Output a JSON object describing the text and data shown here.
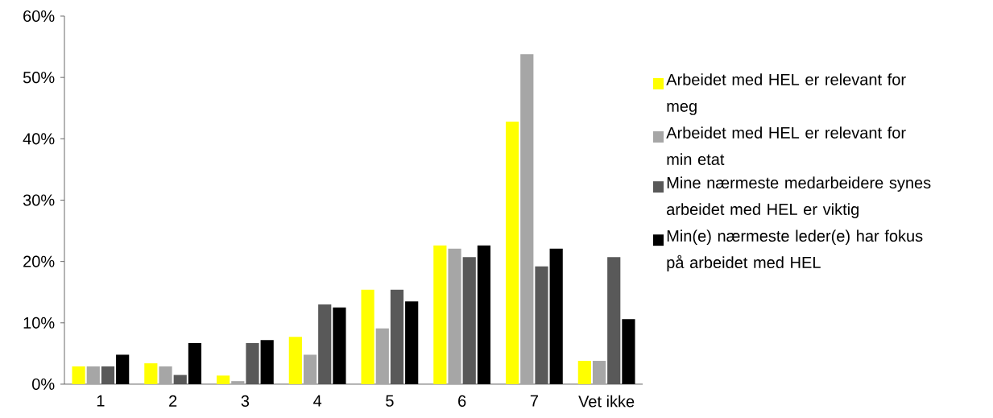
{
  "chart_data": {
    "type": "bar",
    "categories": [
      "1",
      "2",
      "3",
      "4",
      "5",
      "6",
      "7",
      "Vet ikke"
    ],
    "series": [
      {
        "name": "Arbeidet med HEL er relevant for meg",
        "color": "#ffff00",
        "values": [
          2.9,
          3.4,
          1.4,
          7.7,
          15.4,
          22.6,
          42.8,
          3.8
        ]
      },
      {
        "name": "Arbeidet med HEL er relevant for min etat",
        "color": "#a6a6a6",
        "values": [
          2.9,
          2.9,
          0.5,
          4.8,
          9.1,
          22.1,
          53.8,
          3.8
        ]
      },
      {
        "name": "Mine nærmeste medarbeidere synes arbeidet med HEL er viktig",
        "color": "#595959",
        "values": [
          2.9,
          1.5,
          6.7,
          13.0,
          15.4,
          20.7,
          19.2,
          20.7
        ]
      },
      {
        "name": "Min(e) nærmeste leder(e) har fokus på arbeidet med HEL",
        "color": "#000000",
        "values": [
          4.8,
          6.7,
          7.2,
          12.5,
          13.5,
          22.6,
          22.1,
          10.6
        ]
      }
    ],
    "ylim": [
      0,
      60
    ],
    "yticks": [
      {
        "value": 0,
        "label": "0%"
      },
      {
        "value": 10,
        "label": "10%"
      },
      {
        "value": 20,
        "label": "20%"
      },
      {
        "value": 30,
        "label": "30%"
      },
      {
        "value": 40,
        "label": "40%"
      },
      {
        "value": 50,
        "label": "50%"
      },
      {
        "value": 60,
        "label": "60%"
      }
    ],
    "legend": "right",
    "grid": false
  }
}
